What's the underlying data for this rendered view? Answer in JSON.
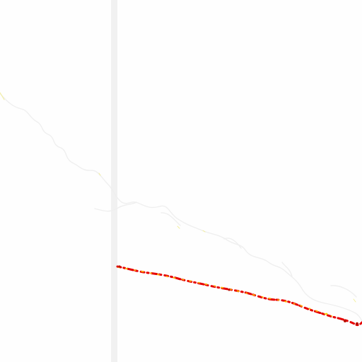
{
  "map": {
    "colors": {
      "background": "#fefefe",
      "faint_band": "#f1f1f1",
      "faint_route": "#efefef",
      "route_red": "#e60000",
      "route_orange": "#ff5a00",
      "route_yellow": "#ffb800",
      "dot_red": "#b81000"
    },
    "layers": [
      "vertical-light-band",
      "faint-upper-route",
      "highlighted-lower-route"
    ]
  }
}
